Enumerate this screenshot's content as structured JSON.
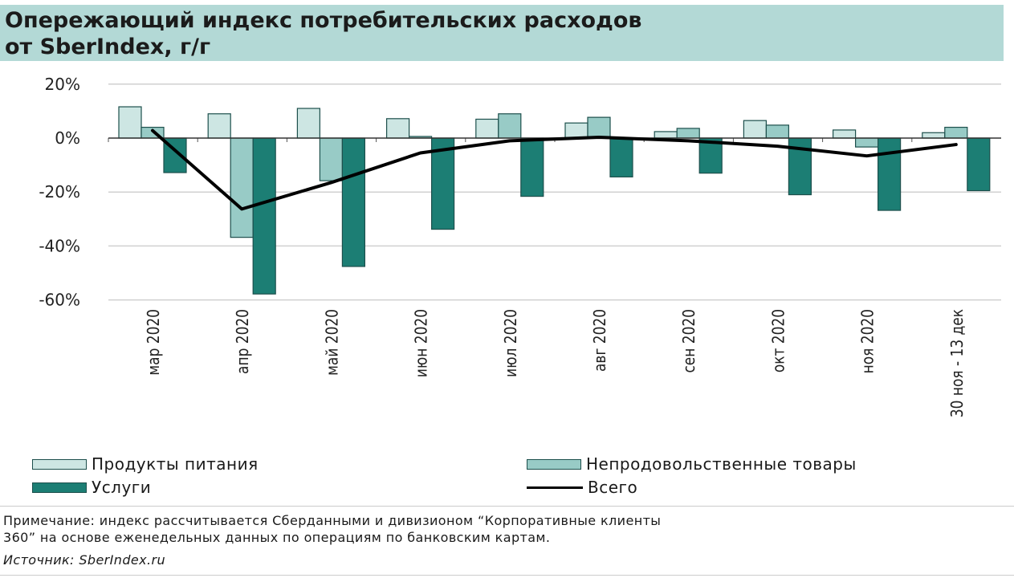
{
  "title": {
    "line1": "Опережающий индекс потребительских расходов",
    "line2": "от SberIndex, г/г"
  },
  "chart_data": {
    "type": "bar",
    "title": "Опережающий индекс потребительских расходов от SberIndex, г/г",
    "categories": [
      "мар 2020",
      "апр 2020",
      "май 2020",
      "июн 2020",
      "июл 2020",
      "авг 2020",
      "сен 2020",
      "окт 2020",
      "ноя 2020",
      "30 ноя - 13 дек"
    ],
    "y_ticks": [
      "20%",
      "0%",
      "-20%",
      "-40%",
      "-60%"
    ],
    "ylim": [
      -60,
      20
    ],
    "grid": true,
    "legend_position": "bottom",
    "series": [
      {
        "name": "Продукты питания",
        "kind": "bar",
        "color": "#cde6e3",
        "values": [
          11.6,
          9,
          11,
          7.2,
          7,
          5.6,
          2.4,
          6.5,
          3,
          2
        ]
      },
      {
        "name": "Непродовольственные товары",
        "kind": "bar",
        "color": "#98cbc6",
        "values": [
          4,
          -36.8,
          -15.8,
          0.6,
          9,
          7.7,
          3.6,
          4.8,
          -3.3,
          4
        ]
      },
      {
        "name": "Услуги",
        "kind": "bar",
        "color": "#1c7e74",
        "values": [
          -12.8,
          -57.8,
          -47.6,
          -33.8,
          -21.6,
          -14.4,
          -13,
          -21,
          -26.8,
          -19.5
        ]
      },
      {
        "name": "Всего",
        "kind": "line",
        "color": "#000000",
        "values": [
          2.8,
          -26.3,
          -16.5,
          -5.5,
          -1,
          0.3,
          -1,
          -3,
          -6.6,
          -2.4
        ]
      }
    ]
  },
  "note": {
    "line1": "Примечание: индекс рассчитывается Сберданными и дивизионом “Корпоративные клиенты",
    "line2": "360” на основе еженедельных данных по операциям по банковским картам."
  },
  "source": "Источник: SberIndex.ru"
}
